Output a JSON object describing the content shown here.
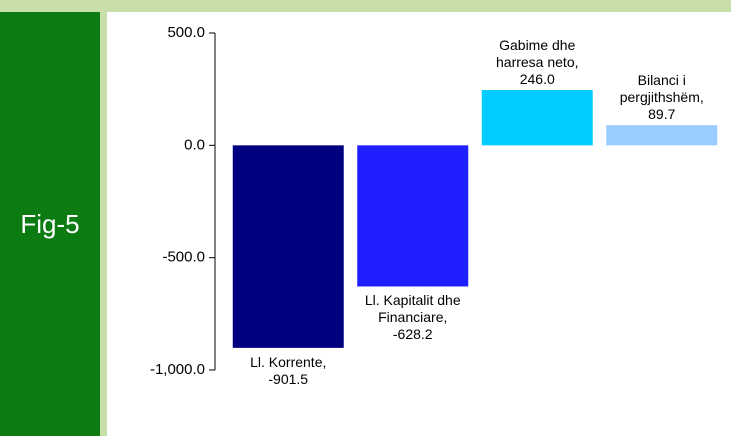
{
  "figure_label": "Fig-5",
  "chart_data": {
    "type": "bar",
    "labels": [
      "Ll. Korrente, -901.5",
      "Ll. Kapitalit dhe Financiare, -628.2",
      "Gabime dhe harresa neto, 246.0",
      "Bilanci i pergjithshëm, 89.7"
    ],
    "values": [
      -901.5,
      -628.2,
      246.0,
      89.7
    ],
    "colors": [
      "#000080",
      "#1f1fff",
      "#00ccff",
      "#99ccff"
    ],
    "ylim": [
      -1000,
      500
    ],
    "yticks": [
      {
        "value": 500,
        "label": "500.0"
      },
      {
        "value": 0,
        "label": "0.0"
      },
      {
        "value": -500,
        "label": "-500.0"
      },
      {
        "value": -1000,
        "label": "-1,000.0"
      }
    ],
    "grid": false
  }
}
